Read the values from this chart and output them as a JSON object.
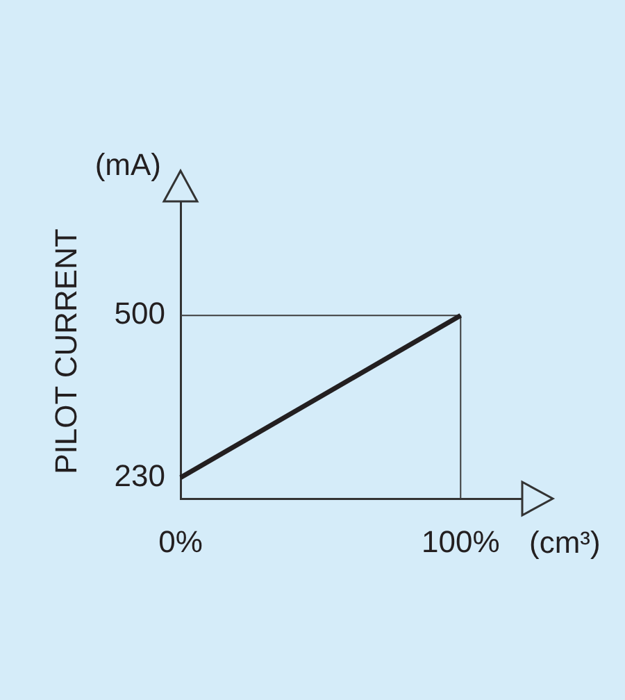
{
  "chart_data": {
    "type": "line",
    "ylabel": "PILOT CURRENT",
    "xlabel": "(cm³)",
    "annotations": [
      "(mA)"
    ],
    "series": [
      {
        "color": "#231f20",
        "x": [
          0,
          100
        ],
        "values": [
          230,
          500
        ]
      }
    ],
    "xlim": [
      0,
      122
    ],
    "ylim": [
      195,
      690
    ],
    "xticks": [
      {
        "value": 0,
        "label": "0%"
      },
      {
        "value": 100,
        "label": "100%"
      }
    ],
    "yticks": [
      230,
      500
    ],
    "ref_lines": [
      {
        "axis": "y",
        "value": 500,
        "color": "#3d3d3d"
      },
      {
        "axis": "x",
        "value": 100,
        "color": "#3d3d3d"
      }
    ],
    "marker": "none"
  }
}
